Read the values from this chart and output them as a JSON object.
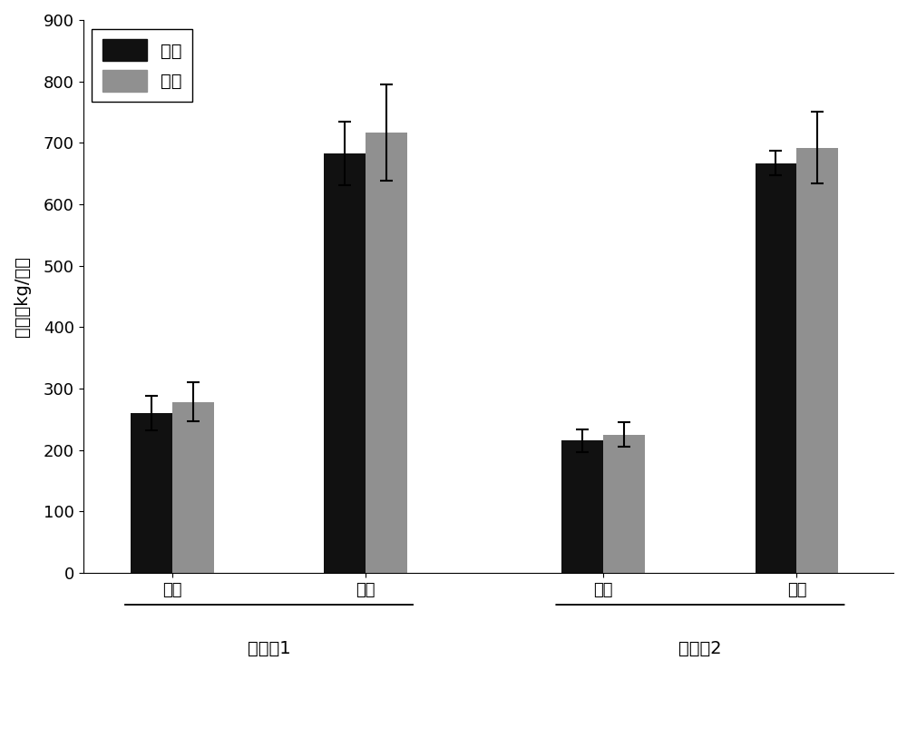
{
  "group_labels_top": [
    "油菜",
    "水稻",
    "油菜",
    "水稻"
  ],
  "example_labels": [
    "实施例1",
    "实施例2"
  ],
  "bar_values_control": [
    260,
    683,
    215,
    667
  ],
  "bar_values_spray": [
    278,
    717,
    225,
    692
  ],
  "error_control": [
    28,
    52,
    18,
    20
  ],
  "error_spray": [
    32,
    78,
    20,
    58
  ],
  "bar_color_control": "#111111",
  "bar_color_spray": "#909090",
  "ylabel": "产量（kg/亩）",
  "ylim": [
    0,
    900
  ],
  "yticks": [
    0,
    100,
    200,
    300,
    400,
    500,
    600,
    700,
    800,
    900
  ],
  "legend_control": "对照",
  "legend_spray": "喷施",
  "bar_width": 0.28,
  "group_centers": [
    1.0,
    2.3,
    3.9,
    5.2
  ],
  "xlim": [
    0.4,
    5.85
  ],
  "background_color": "#ffffff",
  "label_fontsize": 14,
  "tick_fontsize": 13,
  "legend_fontsize": 14
}
